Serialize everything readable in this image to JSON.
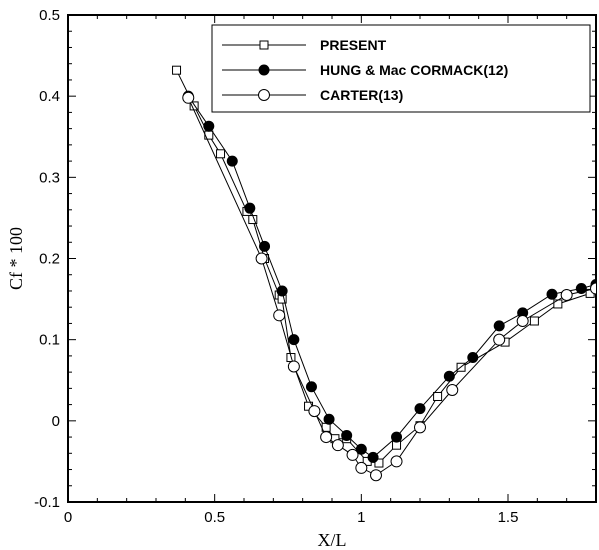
{
  "chart_data": {
    "type": "line",
    "title": "",
    "xlabel": "X/L",
    "ylabel": "Cf * 100",
    "xlim": [
      0,
      1.8
    ],
    "ylim": [
      -0.1,
      0.5
    ],
    "x_ticks": [
      0,
      0.5,
      1,
      1.5
    ],
    "x_tick_labels": [
      "0",
      "0.5",
      "1",
      "1.5"
    ],
    "y_ticks": [
      -0.1,
      0,
      0.1,
      0.2,
      0.3,
      0.4,
      0.5
    ],
    "y_tick_labels": [
      "-0.1",
      "0",
      "0.1",
      "0.2",
      "0.3",
      "0.4",
      "0.5"
    ],
    "grid": false,
    "legend_position": "top-right",
    "series": [
      {
        "name": "PRESENT",
        "marker": "square",
        "x": [
          0.37,
          0.43,
          0.48,
          0.52,
          0.61,
          0.63,
          0.67,
          0.72,
          0.73,
          0.76,
          0.82,
          0.88,
          0.91,
          0.95,
          1.02,
          1.06,
          1.12,
          1.2,
          1.26,
          1.34,
          1.49,
          1.59,
          1.67,
          1.78
        ],
        "y": [
          0.432,
          0.388,
          0.352,
          0.329,
          0.258,
          0.248,
          0.2,
          0.155,
          0.15,
          0.078,
          0.018,
          -0.008,
          -0.022,
          -0.022,
          -0.05,
          -0.052,
          -0.03,
          -0.006,
          0.03,
          0.066,
          0.097,
          0.123,
          0.144,
          0.157
        ]
      },
      {
        "name": "HUNG & Mac CORMACK(12)",
        "marker": "filled-circle",
        "x": [
          0.41,
          0.48,
          0.56,
          0.62,
          0.67,
          0.73,
          0.77,
          0.83,
          0.89,
          0.95,
          1.0,
          1.04,
          1.12,
          1.2,
          1.3,
          1.38,
          1.47,
          1.55,
          1.65,
          1.75,
          1.8
        ],
        "y": [
          0.4,
          0.363,
          0.32,
          0.262,
          0.215,
          0.16,
          0.1,
          0.042,
          0.002,
          -0.018,
          -0.035,
          -0.045,
          -0.02,
          0.015,
          0.055,
          0.078,
          0.117,
          0.133,
          0.156,
          0.163,
          0.168
        ]
      },
      {
        "name": "CARTER(13)",
        "marker": "open-circle",
        "x": [
          0.41,
          0.66,
          0.72,
          0.77,
          0.84,
          0.88,
          0.92,
          0.97,
          1.0,
          1.05,
          1.12,
          1.2,
          1.31,
          1.47,
          1.55,
          1.7,
          1.8
        ],
        "y": [
          0.398,
          0.2,
          0.13,
          0.067,
          0.012,
          -0.02,
          -0.03,
          -0.042,
          -0.058,
          -0.067,
          -0.05,
          -0.008,
          0.038,
          0.1,
          0.123,
          0.155,
          0.163
        ]
      }
    ]
  }
}
